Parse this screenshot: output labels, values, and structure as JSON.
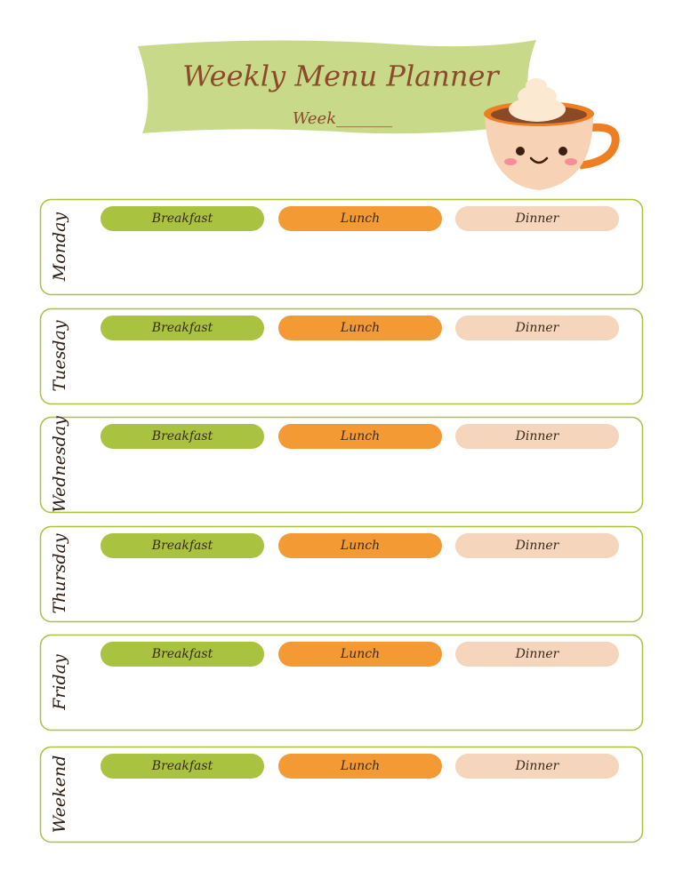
{
  "header": {
    "title": "Weekly Menu Planner",
    "week": "Week_______"
  },
  "days": [
    {
      "label": "Monday",
      "meals": [
        "Breakfast",
        "Lunch",
        "Dinner"
      ]
    },
    {
      "label": "Tuesday",
      "meals": [
        "Breakfast",
        "Lunch",
        "Dinner"
      ]
    },
    {
      "label": "Wednesday",
      "meals": [
        "Breakfast",
        "Lunch",
        "Dinner"
      ]
    },
    {
      "label": "Thursday",
      "meals": [
        "Breakfast",
        "Lunch",
        "Dinner"
      ]
    },
    {
      "label": "Friday",
      "meals": [
        "Breakfast",
        "Lunch",
        "Dinner"
      ]
    },
    {
      "label": "Weekend",
      "meals": [
        "Breakfast",
        "Lunch",
        "Dinner"
      ]
    }
  ]
}
